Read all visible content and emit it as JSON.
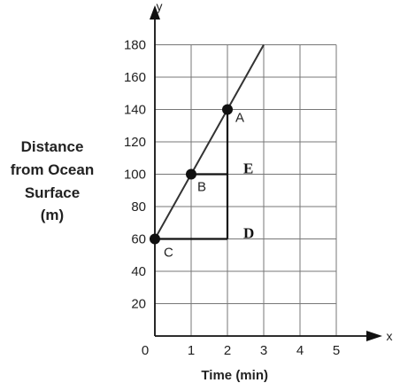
{
  "chart_data": {
    "type": "line",
    "title": "",
    "xlabel": "Time (min)",
    "ylabel_lines": [
      "Distance",
      "from Ocean",
      "Surface",
      "(m)"
    ],
    "x_axis_name": "x",
    "y_axis_name": "y",
    "xlim": [
      0,
      5
    ],
    "ylim": [
      0,
      180
    ],
    "x_ticks": [
      "0",
      "1",
      "2",
      "3",
      "4",
      "5"
    ],
    "y_ticks": [
      "20",
      "40",
      "60",
      "80",
      "100",
      "120",
      "140",
      "160",
      "180"
    ],
    "grid": true,
    "series": [
      {
        "x": [
          0,
          3
        ],
        "y": [
          60,
          180
        ]
      }
    ],
    "points": [
      {
        "label": "A",
        "x": 2,
        "y": 140
      },
      {
        "label": "B",
        "x": 1,
        "y": 100
      },
      {
        "label": "C",
        "x": 0,
        "y": 60
      }
    ],
    "annotations": [
      {
        "label": "E",
        "x": 2,
        "y": 100
      },
      {
        "label": "D",
        "x": 2,
        "y": 60
      }
    ],
    "guide_segments": [
      {
        "from": [
          1,
          100
        ],
        "to": [
          2,
          100
        ]
      },
      {
        "from": [
          0,
          60
        ],
        "to": [
          2,
          60
        ]
      },
      {
        "from": [
          2,
          140
        ],
        "to": [
          2,
          60
        ]
      }
    ]
  }
}
